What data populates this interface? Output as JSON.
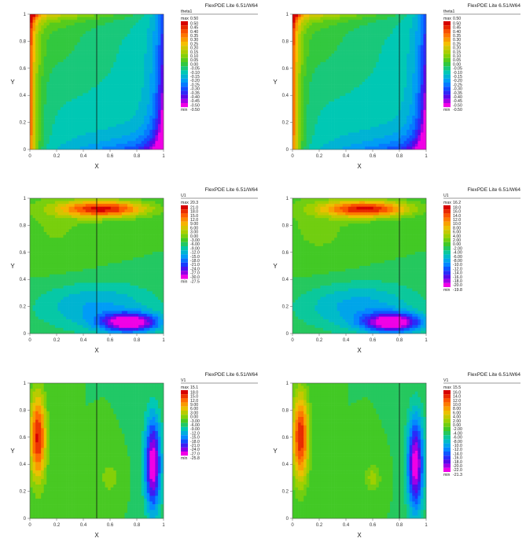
{
  "header": "FlexPDE Lite 6.51/W64",
  "xlabel": "X",
  "ylabel": "Y",
  "ticks": [
    "0",
    "0.2",
    "0.4",
    "0.6",
    "0.8",
    "1"
  ],
  "legend_max_label": "max",
  "legend_min_label": "min",
  "chart_data": [
    {
      "type": "heatmap",
      "variable": "theta1",
      "line_x": 0.5,
      "max": "0.50",
      "min": "-0.50",
      "levels": [
        "0.50",
        "0.45",
        "0.40",
        "0.35",
        "0.30",
        "0.25",
        "0.20",
        "0.15",
        "0.10",
        "0.05",
        "0.00",
        "-0.05",
        "-0.10",
        "-0.15",
        "-0.20",
        "-0.25",
        "-0.30",
        "-0.35",
        "-0.40",
        "-0.45",
        "-0.50"
      ],
      "xlim": [
        0,
        1
      ],
      "ylim": [
        0,
        1
      ]
    },
    {
      "type": "heatmap",
      "variable": "theta1",
      "line_x": 0.8,
      "max": "0.50",
      "min": "-0.50",
      "levels": [
        "0.50",
        "0.45",
        "0.40",
        "0.35",
        "0.30",
        "0.25",
        "0.20",
        "0.15",
        "0.10",
        "0.05",
        "0.00",
        "-0.05",
        "-0.10",
        "-0.15",
        "-0.20",
        "-0.25",
        "-0.30",
        "-0.35",
        "-0.40",
        "-0.45",
        "-0.50"
      ],
      "xlim": [
        0,
        1
      ],
      "ylim": [
        0,
        1
      ]
    },
    {
      "type": "heatmap",
      "variable": "U1",
      "line_x": 0.5,
      "max": "20.3",
      "min": "-27.5",
      "levels": [
        "21.0",
        "18.0",
        "15.0",
        "12.0",
        "9.00",
        "6.00",
        "3.00",
        "0.00",
        "-3.00",
        "-6.00",
        "-9.00",
        "-12.0",
        "-15.0",
        "-18.0",
        "-21.0",
        "-24.0",
        "-27.0",
        "-30.0"
      ],
      "xlim": [
        0,
        1
      ],
      "ylim": [
        0,
        1
      ]
    },
    {
      "type": "heatmap",
      "variable": "U1",
      "line_x": 0.8,
      "max": "16.2",
      "min": "-19.8",
      "levels": [
        "18.0",
        "16.0",
        "14.0",
        "12.0",
        "10.0",
        "8.00",
        "6.00",
        "4.00",
        "2.00",
        "0.00",
        "-2.00",
        "-4.00",
        "-6.00",
        "-8.00",
        "-10.0",
        "-12.0",
        "-14.0",
        "-16.0",
        "-18.0",
        "-20.0"
      ],
      "xlim": [
        0,
        1
      ],
      "ylim": [
        0,
        1
      ]
    },
    {
      "type": "heatmap",
      "variable": "V1",
      "line_x": 0.5,
      "max": "15.1",
      "min": "-25.8",
      "levels": [
        "18.0",
        "15.0",
        "12.0",
        "9.00",
        "6.00",
        "3.00",
        "0.00",
        "-3.00",
        "-6.00",
        "-9.00",
        "-12.0",
        "-15.0",
        "-18.0",
        "-21.0",
        "-24.0",
        "-27.0"
      ],
      "xlim": [
        0,
        1
      ],
      "ylim": [
        0,
        1
      ]
    },
    {
      "type": "heatmap",
      "variable": "V1",
      "line_x": 0.8,
      "max": "15.5",
      "min": "-21.3",
      "levels": [
        "16.0",
        "14.0",
        "12.0",
        "10.0",
        "8.00",
        "6.00",
        "4.00",
        "2.00",
        "0.00",
        "-2.00",
        "-4.00",
        "-6.00",
        "-8.00",
        "-10.0",
        "-12.0",
        "-14.0",
        "-16.0",
        "-18.0",
        "-20.0",
        "-22.0"
      ],
      "xlim": [
        0,
        1
      ],
      "ylim": [
        0,
        1
      ]
    }
  ]
}
